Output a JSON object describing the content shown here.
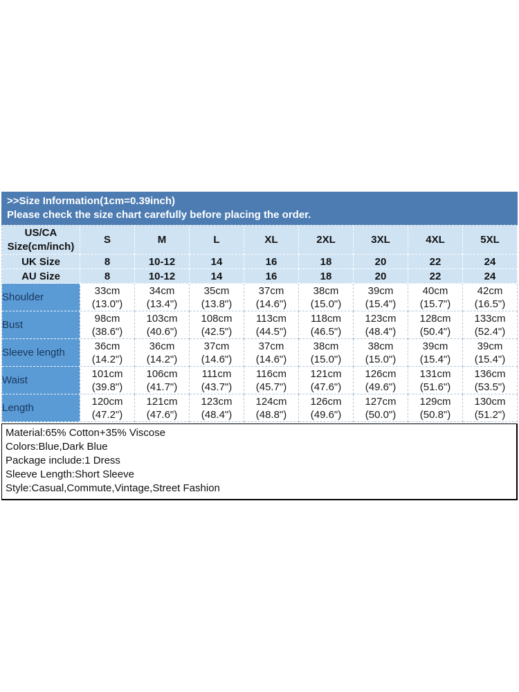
{
  "banner": {
    "title": ">>Size Information(1cm=0.39inch)",
    "subtitle": "Please check the size chart carefully before placing the order."
  },
  "table": {
    "corner_label": "US/CA\nSize(cm/inch)",
    "sizes": [
      "S",
      "M",
      "L",
      "XL",
      "2XL",
      "3XL",
      "4XL",
      "5XL"
    ],
    "uk_label": "UK Size",
    "uk_values": [
      "8",
      "10-12",
      "14",
      "16",
      "18",
      "20",
      "22",
      "24"
    ],
    "au_label": "AU Size",
    "au_values": [
      "8",
      "10-12",
      "14",
      "16",
      "18",
      "20",
      "22",
      "24"
    ],
    "rows": [
      {
        "label": "Shoulder",
        "cells": [
          "33cm\n(13.0\")",
          "34cm\n(13.4\")",
          "35cm\n(13.8\")",
          "37cm\n(14.6\")",
          "38cm\n(15.0\")",
          "39cm\n(15.4\")",
          "40cm\n(15.7\")",
          "42cm\n(16.5\")"
        ]
      },
      {
        "label": "Bust",
        "cells": [
          "98cm\n(38.6\")",
          "103cm\n(40.6\")",
          "108cm\n(42.5\")",
          "113cm\n(44.5\")",
          "118cm\n(46.5\")",
          "123cm\n(48.4\")",
          "128cm\n(50.4\")",
          "133cm\n(52.4\")"
        ]
      },
      {
        "label": "Sleeve length",
        "cells": [
          "36cm\n(14.2\")",
          "36cm\n(14.2\")",
          "37cm\n(14.6\")",
          "37cm\n(14.6\")",
          "38cm\n(15.0\")",
          "38cm\n(15.0\")",
          "39cm\n(15.4\")",
          "39cm\n(15.4\")"
        ]
      },
      {
        "label": "Waist",
        "cells": [
          "101cm\n(39.8\")",
          "106cm\n(41.7\")",
          "111cm\n(43.7\")",
          "116cm\n(45.7\")",
          "121cm\n(47.6\")",
          "126cm\n(49.6\")",
          "131cm\n(51.6\")",
          "136cm\n(53.5\")"
        ]
      },
      {
        "label": "Length",
        "cells": [
          "120cm\n(47.2\")",
          "121cm\n(47.6\")",
          "123cm\n(48.4\")",
          "124cm\n(48.8\")",
          "126cm\n(49.6\")",
          "127cm\n(50.0\")",
          "129cm\n(50.8\")",
          "130cm\n(51.2\")"
        ]
      }
    ]
  },
  "details": {
    "lines": [
      "Material:65% Cotton+35% Viscose",
      "Colors:Blue,Dark Blue",
      "Package include:1 Dress",
      "Sleeve Length:Short Sleeve",
      "Style:Casual,Commute,Vintage,Street Fashion"
    ]
  },
  "colors": {
    "banner_bg": "#4C7CB2",
    "header_cell_bg": "#CFE3F3",
    "row_label_bg": "#5B9BD5",
    "banner_text": "#FFFFFF",
    "body_text": "#1A1A1A"
  }
}
